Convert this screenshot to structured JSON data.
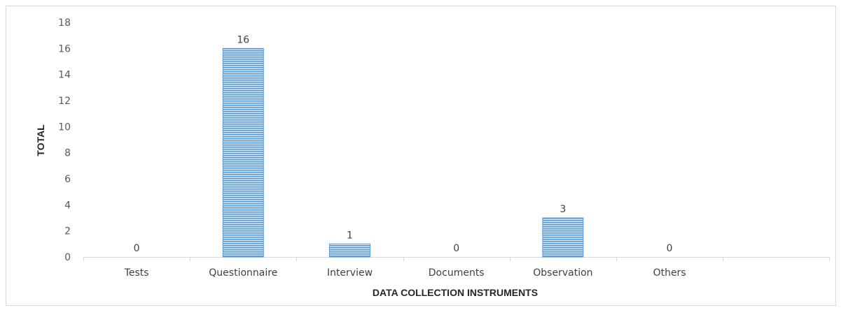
{
  "chart_data": {
    "type": "bar",
    "title": "",
    "xlabel": "DATA COLLECTION INSTRUMENTS",
    "ylabel": "TOTAL",
    "categories": [
      "Tests",
      "Questionnaire",
      "Interview",
      "Documents",
      "Observation",
      "Others"
    ],
    "values": [
      0,
      16,
      1,
      0,
      3,
      0
    ],
    "data_labels": [
      "0",
      "16",
      "1",
      "0",
      "3",
      "0"
    ],
    "ylim": [
      0,
      18
    ],
    "yticks": [
      "0",
      "2",
      "4",
      "6",
      "8",
      "10",
      "12",
      "14",
      "16",
      "18"
    ],
    "grid": false,
    "legend": "none",
    "bar_color": "#5b9bd5",
    "bar_fill_style": "horizontal-stripes"
  }
}
